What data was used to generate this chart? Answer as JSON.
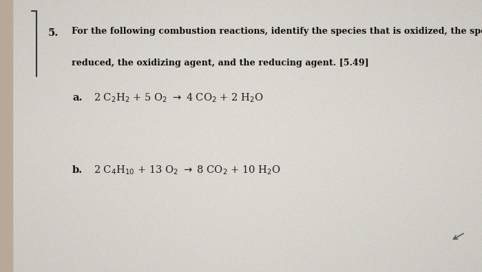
{
  "bg_color": "#c8c4bc",
  "paper_color": "#dedad4",
  "text_color": "#1a1a1a",
  "bold_color": "#111111",
  "number": "5.",
  "q_line1": "For the following combustion reactions, identify the species that is oxidized, the species that is",
  "q_line2": "reduced, the oxidizing agent, and the reducing agent. [5.49]",
  "label_a": "a.",
  "reaction_a": "2 C$_2$H$_2$ + 5 O$_2$ $\\rightarrow$ 4 CO$_2$ + 2 H$_2$O",
  "label_b": "b.",
  "reaction_b": "2 C$_4$H$_{10}$ + 13 O$_2$ $\\rightarrow$ 8 CO$_2$ + 10 H$_2$O",
  "fig_width": 7.0,
  "fig_height": 3.95,
  "dpi": 100
}
